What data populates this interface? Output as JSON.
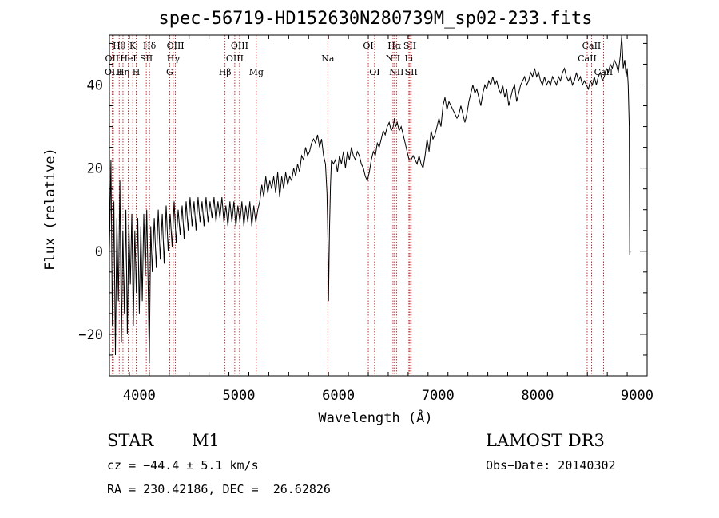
{
  "chart_data": {
    "type": "line",
    "title": "spec-56719-HD152630N280739M_sp02-233.fits",
    "xlabel": "Wavelength (Å)",
    "ylabel": "Flux (relative)",
    "xlim": [
      3700,
      9100
    ],
    "ylim": [
      -30,
      52
    ],
    "xticks": [
      4000,
      5000,
      6000,
      7000,
      8000,
      9000
    ],
    "yticks": [
      -20,
      0,
      20,
      40
    ],
    "series": [
      {
        "name": "spectrum",
        "points": [
          [
            3700,
            0
          ],
          [
            3715,
            22
          ],
          [
            3730,
            -18
          ],
          [
            3745,
            12
          ],
          [
            3760,
            -25
          ],
          [
            3775,
            8
          ],
          [
            3790,
            -12
          ],
          [
            3805,
            17
          ],
          [
            3820,
            -22
          ],
          [
            3835,
            5
          ],
          [
            3850,
            -15
          ],
          [
            3865,
            10
          ],
          [
            3880,
            -20
          ],
          [
            3895,
            7
          ],
          [
            3910,
            -8
          ],
          [
            3925,
            9
          ],
          [
            3940,
            -18
          ],
          [
            3955,
            5
          ],
          [
            3970,
            -10
          ],
          [
            3985,
            8
          ],
          [
            4000,
            -15
          ],
          [
            4015,
            6
          ],
          [
            4030,
            -12
          ],
          [
            4045,
            9
          ],
          [
            4060,
            -6
          ],
          [
            4075,
            10
          ],
          [
            4090,
            -10
          ],
          [
            4100,
            -27
          ],
          [
            4115,
            6
          ],
          [
            4130,
            -5
          ],
          [
            4150,
            8
          ],
          [
            4170,
            -4
          ],
          [
            4190,
            10
          ],
          [
            4210,
            -2
          ],
          [
            4230,
            9
          ],
          [
            4250,
            -3
          ],
          [
            4270,
            11
          ],
          [
            4290,
            0
          ],
          [
            4310,
            9
          ],
          [
            4330,
            1
          ],
          [
            4350,
            12
          ],
          [
            4370,
            2
          ],
          [
            4390,
            10
          ],
          [
            4410,
            4
          ],
          [
            4430,
            11
          ],
          [
            4450,
            3
          ],
          [
            4470,
            12
          ],
          [
            4490,
            5
          ],
          [
            4510,
            13
          ],
          [
            4530,
            6
          ],
          [
            4550,
            12
          ],
          [
            4570,
            5
          ],
          [
            4590,
            13
          ],
          [
            4610,
            7
          ],
          [
            4630,
            12
          ],
          [
            4650,
            6
          ],
          [
            4670,
            13
          ],
          [
            4690,
            7
          ],
          [
            4710,
            12
          ],
          [
            4730,
            8
          ],
          [
            4750,
            13
          ],
          [
            4770,
            7
          ],
          [
            4790,
            12
          ],
          [
            4810,
            8
          ],
          [
            4830,
            13
          ],
          [
            4850,
            7
          ],
          [
            4870,
            11
          ],
          [
            4890,
            6
          ],
          [
            4910,
            12
          ],
          [
            4930,
            7
          ],
          [
            4950,
            12
          ],
          [
            4970,
            6
          ],
          [
            4990,
            11
          ],
          [
            5010,
            7
          ],
          [
            5030,
            12
          ],
          [
            5050,
            6
          ],
          [
            5070,
            11
          ],
          [
            5090,
            7
          ],
          [
            5110,
            12
          ],
          [
            5130,
            6
          ],
          [
            5150,
            11
          ],
          [
            5170,
            7
          ],
          [
            5190,
            10
          ],
          [
            5210,
            12
          ],
          [
            5230,
            16
          ],
          [
            5250,
            13
          ],
          [
            5270,
            18
          ],
          [
            5290,
            14
          ],
          [
            5310,
            17
          ],
          [
            5330,
            15
          ],
          [
            5350,
            18
          ],
          [
            5370,
            14
          ],
          [
            5390,
            19
          ],
          [
            5410,
            13
          ],
          [
            5430,
            18
          ],
          [
            5450,
            15
          ],
          [
            5470,
            19
          ],
          [
            5490,
            16
          ],
          [
            5510,
            18
          ],
          [
            5530,
            17
          ],
          [
            5550,
            20
          ],
          [
            5570,
            18
          ],
          [
            5590,
            21
          ],
          [
            5610,
            19
          ],
          [
            5630,
            23
          ],
          [
            5650,
            22
          ],
          [
            5670,
            25
          ],
          [
            5690,
            23
          ],
          [
            5710,
            24
          ],
          [
            5730,
            26
          ],
          [
            5750,
            27
          ],
          [
            5770,
            26
          ],
          [
            5790,
            28
          ],
          [
            5810,
            25
          ],
          [
            5830,
            27
          ],
          [
            5850,
            23
          ],
          [
            5870,
            21
          ],
          [
            5885,
            14
          ],
          [
            5895,
            2
          ],
          [
            5900,
            -12
          ],
          [
            5910,
            5
          ],
          [
            5920,
            16
          ],
          [
            5930,
            22
          ],
          [
            5950,
            21
          ],
          [
            5970,
            22
          ],
          [
            5990,
            19
          ],
          [
            6010,
            23
          ],
          [
            6030,
            21
          ],
          [
            6050,
            24
          ],
          [
            6070,
            20
          ],
          [
            6090,
            24
          ],
          [
            6110,
            22
          ],
          [
            6130,
            25
          ],
          [
            6150,
            23
          ],
          [
            6170,
            22
          ],
          [
            6190,
            24
          ],
          [
            6210,
            23
          ],
          [
            6230,
            21
          ],
          [
            6250,
            20
          ],
          [
            6270,
            18
          ],
          [
            6290,
            17
          ],
          [
            6310,
            19
          ],
          [
            6330,
            22
          ],
          [
            6350,
            24
          ],
          [
            6370,
            23
          ],
          [
            6390,
            26
          ],
          [
            6410,
            25
          ],
          [
            6430,
            27
          ],
          [
            6450,
            29
          ],
          [
            6470,
            28
          ],
          [
            6490,
            30
          ],
          [
            6510,
            31
          ],
          [
            6530,
            29
          ],
          [
            6550,
            30
          ],
          [
            6563,
            32
          ],
          [
            6575,
            30
          ],
          [
            6590,
            31
          ],
          [
            6610,
            29
          ],
          [
            6630,
            30
          ],
          [
            6650,
            28
          ],
          [
            6670,
            26
          ],
          [
            6690,
            24
          ],
          [
            6710,
            22
          ],
          [
            6730,
            22
          ],
          [
            6750,
            23
          ],
          [
            6770,
            22
          ],
          [
            6790,
            21
          ],
          [
            6810,
            23
          ],
          [
            6830,
            21
          ],
          [
            6850,
            20
          ],
          [
            6870,
            23
          ],
          [
            6890,
            27
          ],
          [
            6910,
            24
          ],
          [
            6930,
            29
          ],
          [
            6950,
            27
          ],
          [
            6970,
            28
          ],
          [
            6990,
            30
          ],
          [
            7010,
            32
          ],
          [
            7030,
            30
          ],
          [
            7050,
            35
          ],
          [
            7070,
            37
          ],
          [
            7090,
            34
          ],
          [
            7110,
            36
          ],
          [
            7130,
            35
          ],
          [
            7150,
            34
          ],
          [
            7170,
            33
          ],
          [
            7190,
            32
          ],
          [
            7210,
            33
          ],
          [
            7230,
            35
          ],
          [
            7250,
            33
          ],
          [
            7270,
            31
          ],
          [
            7290,
            33
          ],
          [
            7310,
            36
          ],
          [
            7330,
            38
          ],
          [
            7350,
            40
          ],
          [
            7370,
            38
          ],
          [
            7390,
            39
          ],
          [
            7410,
            37
          ],
          [
            7430,
            35
          ],
          [
            7450,
            38
          ],
          [
            7470,
            40
          ],
          [
            7490,
            39
          ],
          [
            7510,
            41
          ],
          [
            7530,
            40
          ],
          [
            7550,
            42
          ],
          [
            7570,
            40
          ],
          [
            7590,
            41
          ],
          [
            7610,
            39
          ],
          [
            7630,
            38
          ],
          [
            7650,
            40
          ],
          [
            7670,
            37
          ],
          [
            7690,
            39
          ],
          [
            7710,
            35
          ],
          [
            7730,
            37
          ],
          [
            7750,
            39
          ],
          [
            7770,
            40
          ],
          [
            7790,
            36
          ],
          [
            7810,
            38
          ],
          [
            7830,
            40
          ],
          [
            7850,
            41
          ],
          [
            7870,
            42
          ],
          [
            7890,
            40
          ],
          [
            7910,
            41
          ],
          [
            7930,
            43
          ],
          [
            7950,
            42
          ],
          [
            7970,
            44
          ],
          [
            7990,
            42
          ],
          [
            8010,
            43
          ],
          [
            8030,
            41
          ],
          [
            8050,
            40
          ],
          [
            8070,
            42
          ],
          [
            8090,
            40
          ],
          [
            8110,
            41
          ],
          [
            8130,
            40
          ],
          [
            8150,
            42
          ],
          [
            8170,
            41
          ],
          [
            8190,
            40
          ],
          [
            8210,
            42
          ],
          [
            8230,
            41
          ],
          [
            8250,
            43
          ],
          [
            8270,
            44
          ],
          [
            8290,
            42
          ],
          [
            8310,
            41
          ],
          [
            8330,
            42
          ],
          [
            8350,
            40
          ],
          [
            8370,
            41
          ],
          [
            8390,
            43
          ],
          [
            8410,
            41
          ],
          [
            8430,
            42
          ],
          [
            8450,
            40
          ],
          [
            8470,
            41
          ],
          [
            8490,
            40
          ],
          [
            8510,
            39
          ],
          [
            8530,
            41
          ],
          [
            8550,
            40
          ],
          [
            8570,
            42
          ],
          [
            8590,
            40
          ],
          [
            8610,
            42
          ],
          [
            8630,
            43
          ],
          [
            8650,
            41
          ],
          [
            8670,
            42
          ],
          [
            8690,
            44
          ],
          [
            8710,
            43
          ],
          [
            8730,
            45
          ],
          [
            8750,
            44
          ],
          [
            8770,
            46
          ],
          [
            8790,
            45
          ],
          [
            8810,
            43
          ],
          [
            8830,
            47
          ],
          [
            8845,
            52
          ],
          [
            8860,
            44
          ],
          [
            8875,
            46
          ],
          [
            8890,
            42
          ],
          [
            8900,
            44
          ],
          [
            8910,
            40
          ],
          [
            8920,
            30
          ],
          [
            8925,
            -1
          ],
          [
            8930,
            0
          ]
        ]
      }
    ],
    "emission_lines": [
      {
        "label": "Hθ",
        "wl": 3798,
        "row": 1
      },
      {
        "label": "OII",
        "wl": 3727,
        "row": 2
      },
      {
        "label": "Hη",
        "wl": 3836,
        "row": 3
      },
      {
        "label": "OIII",
        "wl": 3740,
        "row": 3
      },
      {
        "label": "K",
        "wl": 3934,
        "row": 1
      },
      {
        "label": "HeI",
        "wl": 3889,
        "row": 2
      },
      {
        "label": "H",
        "wl": 3969,
        "row": 3
      },
      {
        "label": "Hδ",
        "wl": 4102,
        "row": 1
      },
      {
        "label": "SII",
        "wl": 4070,
        "row": 2
      },
      {
        "label": "OIII",
        "wl": 4363,
        "row": 1
      },
      {
        "label": "Hγ",
        "wl": 4341,
        "row": 2
      },
      {
        "label": "G",
        "wl": 4305,
        "row": 3
      },
      {
        "label": "OIII",
        "wl": 5007,
        "row": 1
      },
      {
        "label": "OIII",
        "wl": 4959,
        "row": 2
      },
      {
        "label": "Hβ",
        "wl": 4861,
        "row": 3
      },
      {
        "label": "Mg",
        "wl": 5175,
        "row": 3
      },
      {
        "label": "Na",
        "wl": 5893,
        "row": 2
      },
      {
        "label": "OI",
        "wl": 6300,
        "row": 1
      },
      {
        "label": "OI",
        "wl": 6363,
        "row": 3
      },
      {
        "label": "Hα",
        "wl": 6563,
        "row": 1
      },
      {
        "label": "NII",
        "wl": 6548,
        "row": 2
      },
      {
        "label": "NII",
        "wl": 6583,
        "row": 3
      },
      {
        "label": "SII",
        "wl": 6717,
        "row": 1
      },
      {
        "label": "Li",
        "wl": 6708,
        "row": 2
      },
      {
        "label": "SII",
        "wl": 6731,
        "row": 3
      },
      {
        "label": "CaII",
        "wl": 8542,
        "row": 1
      },
      {
        "label": "CaII",
        "wl": 8498,
        "row": 2
      },
      {
        "label": "CaII",
        "wl": 8662,
        "row": 3
      }
    ],
    "colors": {
      "spectrum": "#000000",
      "lines": "#b00000",
      "axes": "#000000"
    }
  },
  "info": {
    "object_class": "STAR",
    "subclass": "M1",
    "survey": "LAMOST DR3",
    "cz": "cz = −44.4 ± 5.1 km/s",
    "obs_date": "Obs−Date: 20140302",
    "coords": "RA = 230.42186, DEC =  26.62826"
  }
}
